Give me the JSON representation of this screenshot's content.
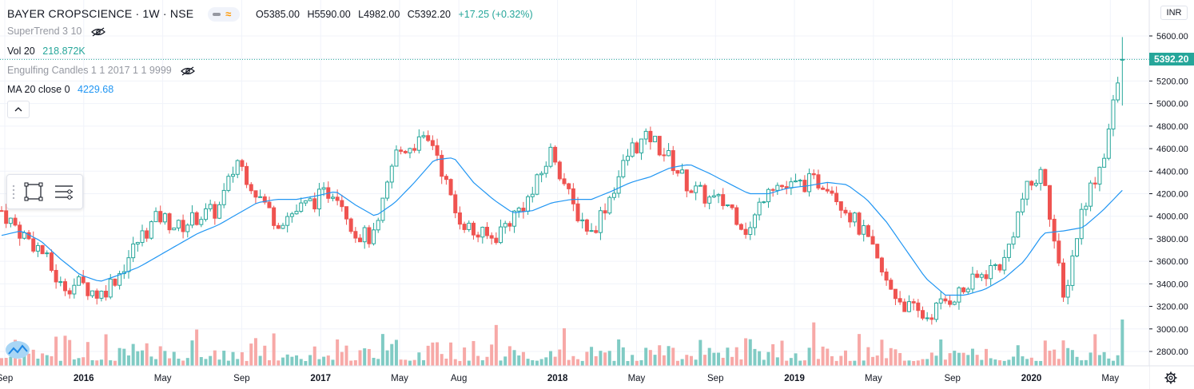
{
  "header": {
    "symbol": "BAYER CROPSCIENCE · 1W · NSE",
    "open": "O5385.00",
    "high": "H5590.00",
    "low": "L4982.00",
    "close": "C5392.20",
    "change": "+17.25 (+0.32%)"
  },
  "indicators": {
    "supertrend": {
      "label": "SuperTrend 3 10"
    },
    "volume": {
      "label": "Vol 20",
      "value": "218.872K"
    },
    "engulfing": {
      "label": "Engulfing Candles 1 1 2017 1 1 9999"
    },
    "ma": {
      "label": "MA 20 close 0",
      "value": "4229.68"
    }
  },
  "price_axis": {
    "currency": "INR",
    "current_price_label": "5392.20",
    "ticks": [
      "5600.00",
      "5400.00",
      "5200.00",
      "5000.00",
      "4800.00",
      "4600.00",
      "4400.00",
      "4200.00",
      "4000.00",
      "3800.00",
      "3600.00",
      "3400.00",
      "3200.00",
      "3000.00",
      "2800.00"
    ]
  },
  "time_axis": {
    "labels": [
      {
        "text": "Sep",
        "bold": false
      },
      {
        "text": "2016",
        "bold": true
      },
      {
        "text": "May",
        "bold": false
      },
      {
        "text": "Sep",
        "bold": false
      },
      {
        "text": "2017",
        "bold": true
      },
      {
        "text": "May",
        "bold": false
      },
      {
        "text": "Aug",
        "bold": false
      },
      {
        "text": "2018",
        "bold": true
      },
      {
        "text": "May",
        "bold": false
      },
      {
        "text": "Sep",
        "bold": false
      },
      {
        "text": "2019",
        "bold": true
      },
      {
        "text": "May",
        "bold": false
      },
      {
        "text": "Sep",
        "bold": false
      },
      {
        "text": "2020",
        "bold": true
      },
      {
        "text": "May",
        "bold": false
      }
    ]
  },
  "colors": {
    "up": "#26a69a",
    "down": "#ef5350",
    "ma": "#2196f3",
    "vol_up": "#80cbc4",
    "vol_down": "#f7a9a7",
    "grid": "#f0f3fa"
  },
  "chart_data": {
    "type": "candlestick",
    "title": "BAYER CROPSCIENCE · 1W · NSE",
    "timeframe": "weekly",
    "x_range": [
      "2015-09",
      "2020-06"
    ],
    "ylim": [
      2700,
      5750
    ],
    "last_bar": {
      "open": 5385.0,
      "high": 5590.0,
      "low": 4982.0,
      "close": 5392.2,
      "change": 17.25,
      "change_pct": 0.32
    },
    "ma20_last": 4229.68,
    "volume_last": "218.872K",
    "price_path": [
      {
        "date": "2015-09",
        "price": 4050
      },
      {
        "date": "2015-10",
        "price": 3850
      },
      {
        "date": "2015-11",
        "price": 3700
      },
      {
        "date": "2015-12",
        "price": 3380
      },
      {
        "date": "2016-01",
        "price": 3400
      },
      {
        "date": "2016-02",
        "price": 3300
      },
      {
        "date": "2016-03",
        "price": 3500
      },
      {
        "date": "2016-04",
        "price": 3800
      },
      {
        "date": "2016-05",
        "price": 4000
      },
      {
        "date": "2016-06",
        "price": 3900
      },
      {
        "date": "2016-07",
        "price": 4000
      },
      {
        "date": "2016-08",
        "price": 4050
      },
      {
        "date": "2016-09",
        "price": 4500
      },
      {
        "date": "2016-10",
        "price": 4200
      },
      {
        "date": "2016-11",
        "price": 3950
      },
      {
        "date": "2016-12",
        "price": 4050
      },
      {
        "date": "2017-01",
        "price": 4150
      },
      {
        "date": "2017-02",
        "price": 4250
      },
      {
        "date": "2017-03",
        "price": 3850
      },
      {
        "date": "2017-04",
        "price": 3800
      },
      {
        "date": "2017-05",
        "price": 4550
      },
      {
        "date": "2017-06",
        "price": 4650
      },
      {
        "date": "2017-07",
        "price": 4650
      },
      {
        "date": "2017-08",
        "price": 4050
      },
      {
        "date": "2017-09",
        "price": 3850
      },
      {
        "date": "2017-10",
        "price": 3800
      },
      {
        "date": "2017-11",
        "price": 4000
      },
      {
        "date": "2017-12",
        "price": 4200
      },
      {
        "date": "2018-01",
        "price": 4600
      },
      {
        "date": "2018-02",
        "price": 4100
      },
      {
        "date": "2018-03",
        "price": 3850
      },
      {
        "date": "2018-04",
        "price": 4200
      },
      {
        "date": "2018-05",
        "price": 4600
      },
      {
        "date": "2018-06",
        "price": 4700
      },
      {
        "date": "2018-07",
        "price": 4500
      },
      {
        "date": "2018-08",
        "price": 4250
      },
      {
        "date": "2018-09",
        "price": 4150
      },
      {
        "date": "2018-10",
        "price": 4100
      },
      {
        "date": "2018-11",
        "price": 3850
      },
      {
        "date": "2018-12",
        "price": 4300
      },
      {
        "date": "2019-01",
        "price": 4250
      },
      {
        "date": "2019-02",
        "price": 4300
      },
      {
        "date": "2019-03",
        "price": 4300
      },
      {
        "date": "2019-04",
        "price": 4050
      },
      {
        "date": "2019-05",
        "price": 3800
      },
      {
        "date": "2019-06",
        "price": 3400
      },
      {
        "date": "2019-07",
        "price": 3200
      },
      {
        "date": "2019-08",
        "price": 3100
      },
      {
        "date": "2019-09",
        "price": 3250
      },
      {
        "date": "2019-10",
        "price": 3350
      },
      {
        "date": "2019-11",
        "price": 3500
      },
      {
        "date": "2019-12",
        "price": 3600
      },
      {
        "date": "2020-01",
        "price": 4200
      },
      {
        "date": "2020-02",
        "price": 4400
      },
      {
        "date": "2020-03",
        "price": 3250
      },
      {
        "date": "2020-04",
        "price": 4100
      },
      {
        "date": "2020-05",
        "price": 4500
      },
      {
        "date": "2020-06",
        "price": 5392
      }
    ],
    "ma20_path": [
      {
        "date": "2015-09",
        "price": 3830
      },
      {
        "date": "2015-10",
        "price": 3870
      },
      {
        "date": "2015-11",
        "price": 3780
      },
      {
        "date": "2015-12",
        "price": 3620
      },
      {
        "date": "2016-01",
        "price": 3480
      },
      {
        "date": "2016-02",
        "price": 3420
      },
      {
        "date": "2016-03",
        "price": 3480
      },
      {
        "date": "2016-04",
        "price": 3550
      },
      {
        "date": "2016-05",
        "price": 3650
      },
      {
        "date": "2016-06",
        "price": 3750
      },
      {
        "date": "2016-07",
        "price": 3850
      },
      {
        "date": "2016-08",
        "price": 3920
      },
      {
        "date": "2016-09",
        "price": 4020
      },
      {
        "date": "2016-10",
        "price": 4120
      },
      {
        "date": "2016-11",
        "price": 4150
      },
      {
        "date": "2016-12",
        "price": 4150
      },
      {
        "date": "2017-01",
        "price": 4180
      },
      {
        "date": "2017-02",
        "price": 4220
      },
      {
        "date": "2017-03",
        "price": 4100
      },
      {
        "date": "2017-04",
        "price": 4000
      },
      {
        "date": "2017-05",
        "price": 4120
      },
      {
        "date": "2017-06",
        "price": 4300
      },
      {
        "date": "2017-07",
        "price": 4500
      },
      {
        "date": "2017-08",
        "price": 4520
      },
      {
        "date": "2017-09",
        "price": 4300
      },
      {
        "date": "2017-10",
        "price": 4150
      },
      {
        "date": "2017-11",
        "price": 4030
      },
      {
        "date": "2017-12",
        "price": 4050
      },
      {
        "date": "2018-01",
        "price": 4120
      },
      {
        "date": "2018-02",
        "price": 4150
      },
      {
        "date": "2018-03",
        "price": 4150
      },
      {
        "date": "2018-04",
        "price": 4220
      },
      {
        "date": "2018-05",
        "price": 4300
      },
      {
        "date": "2018-06",
        "price": 4350
      },
      {
        "date": "2018-07",
        "price": 4430
      },
      {
        "date": "2018-08",
        "price": 4460
      },
      {
        "date": "2018-09",
        "price": 4380
      },
      {
        "date": "2018-10",
        "price": 4290
      },
      {
        "date": "2018-11",
        "price": 4200
      },
      {
        "date": "2018-12",
        "price": 4200
      },
      {
        "date": "2019-01",
        "price": 4250
      },
      {
        "date": "2019-02",
        "price": 4270
      },
      {
        "date": "2019-03",
        "price": 4300
      },
      {
        "date": "2019-04",
        "price": 4280
      },
      {
        "date": "2019-05",
        "price": 4150
      },
      {
        "date": "2019-06",
        "price": 3950
      },
      {
        "date": "2019-07",
        "price": 3700
      },
      {
        "date": "2019-08",
        "price": 3450
      },
      {
        "date": "2019-09",
        "price": 3300
      },
      {
        "date": "2019-10",
        "price": 3300
      },
      {
        "date": "2019-11",
        "price": 3350
      },
      {
        "date": "2019-12",
        "price": 3450
      },
      {
        "date": "2020-01",
        "price": 3600
      },
      {
        "date": "2020-02",
        "price": 3850
      },
      {
        "date": "2020-03",
        "price": 3870
      },
      {
        "date": "2020-04",
        "price": 3900
      },
      {
        "date": "2020-05",
        "price": 4050
      },
      {
        "date": "2020-06",
        "price": 4230
      }
    ]
  }
}
